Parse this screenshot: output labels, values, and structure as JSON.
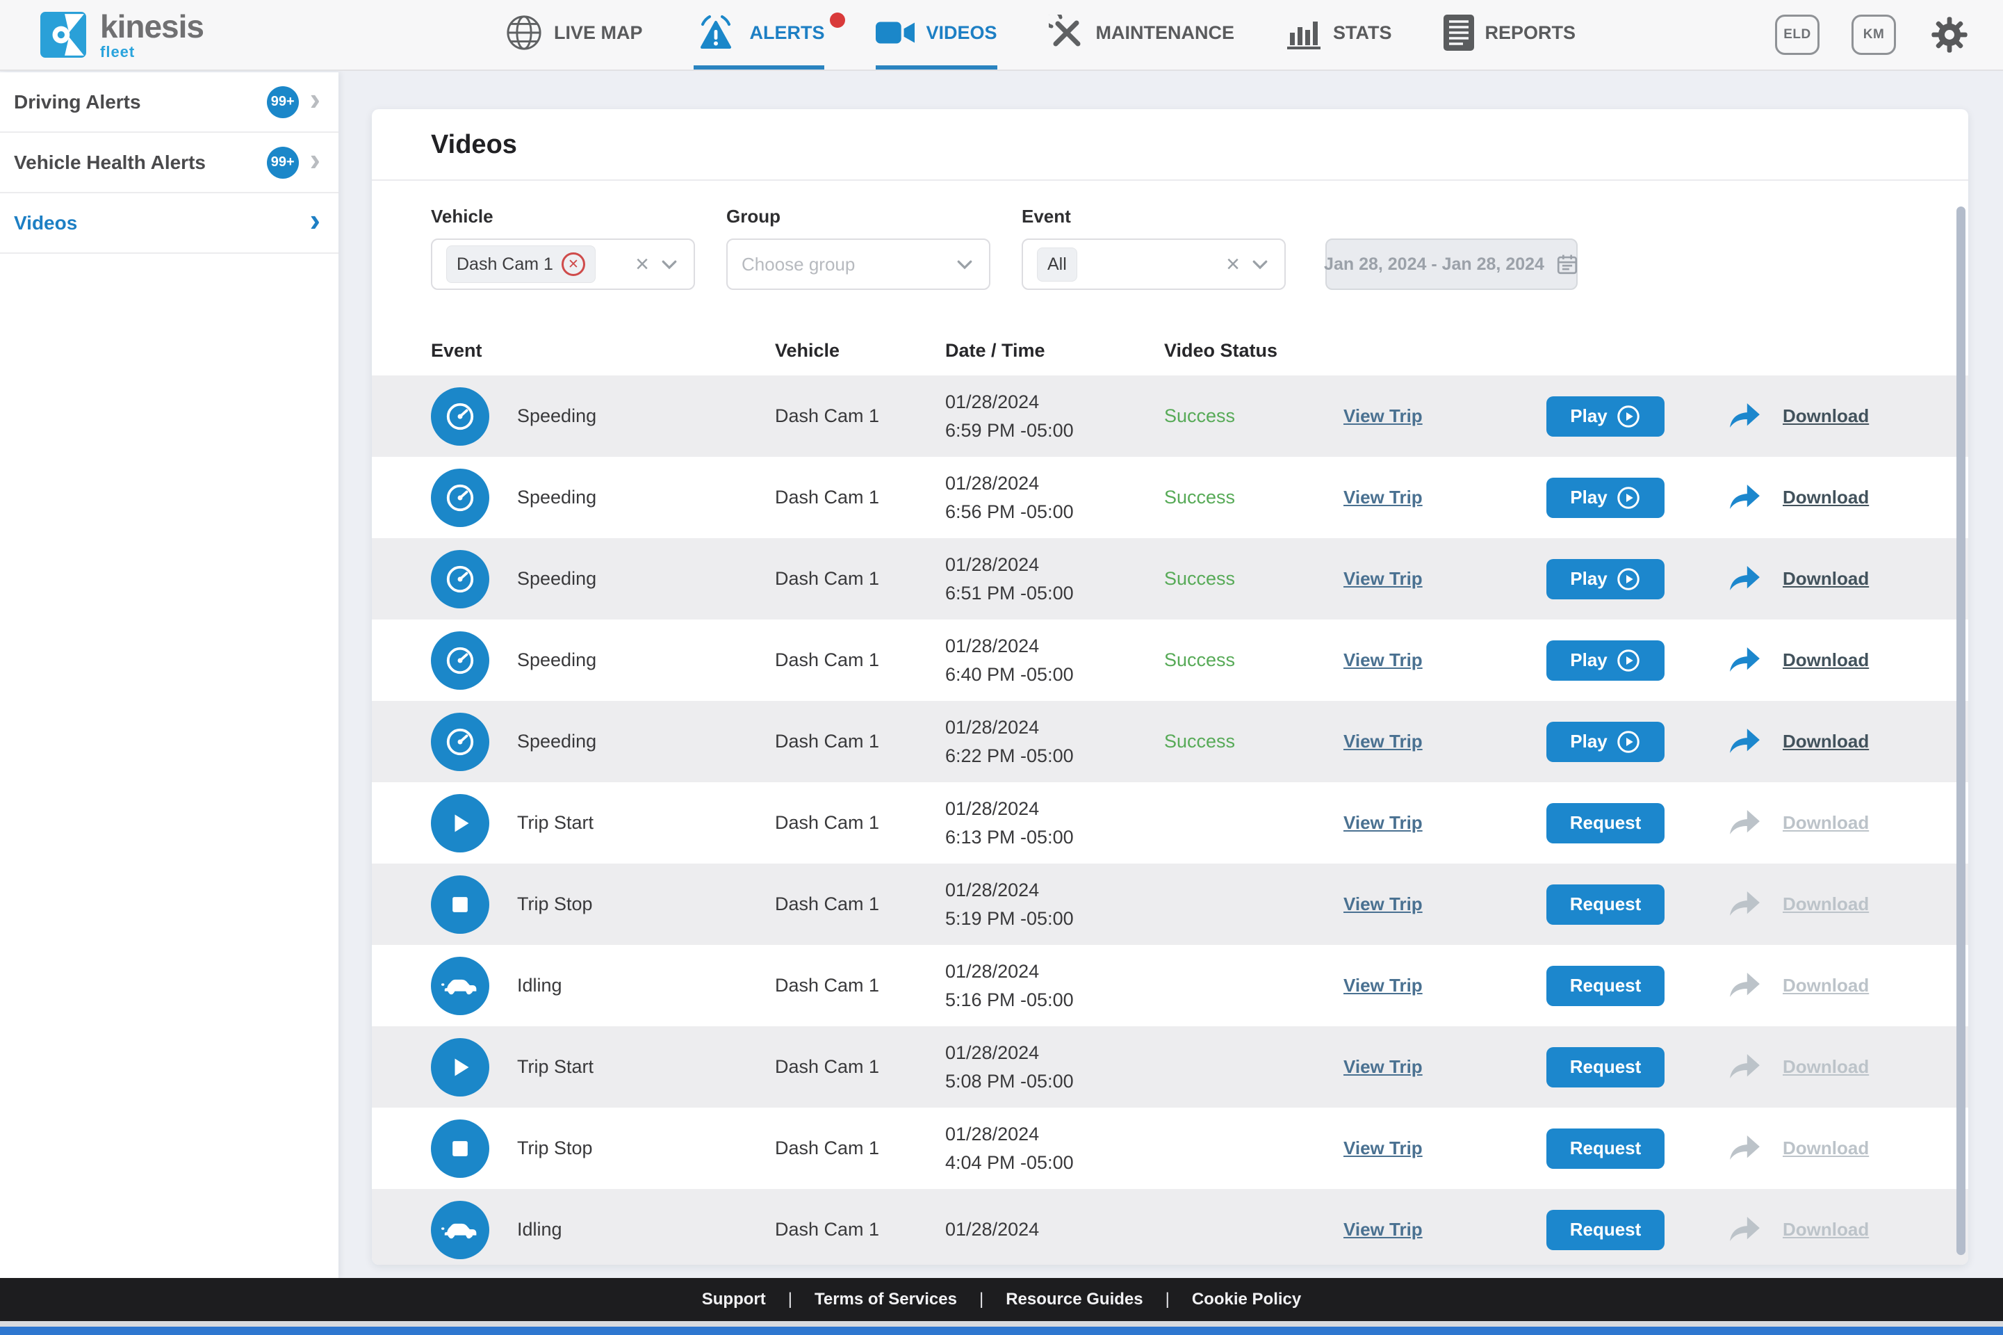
{
  "colors": {
    "accent": "#1b87c9",
    "active_tab": "#1d7fc4",
    "success_green": "#57aa57",
    "alert_dot_red": "#d93a3a",
    "footer_bg": "#1d1d1f"
  },
  "brand": {
    "name": "kinesis",
    "tagline": "fleet"
  },
  "nav": {
    "items": [
      {
        "label": "LIVE MAP",
        "icon": "globe",
        "active": false,
        "has_badge": false
      },
      {
        "label": "ALERTS",
        "icon": "alert",
        "active": true,
        "has_badge": true
      },
      {
        "label": "VIDEOS",
        "icon": "camera",
        "active": true,
        "has_badge": false
      },
      {
        "label": "MAINTENANCE",
        "icon": "tools",
        "active": false,
        "has_badge": false
      },
      {
        "label": "STATS",
        "icon": "stats",
        "active": false,
        "has_badge": false
      },
      {
        "label": "REPORTS",
        "icon": "reports",
        "active": false,
        "has_badge": false
      }
    ],
    "toggles": [
      {
        "label": "ELD"
      },
      {
        "label": "KM"
      }
    ]
  },
  "sidebar": {
    "items": [
      {
        "label": "Driving Alerts",
        "badge": "99+",
        "active": false
      },
      {
        "label": "Vehicle Health Alerts",
        "badge": "99+",
        "active": false
      },
      {
        "label": "Videos",
        "badge": "",
        "active": true
      }
    ]
  },
  "page": {
    "title": "Videos"
  },
  "filters": {
    "vehicle": {
      "label": "Vehicle",
      "selected_chip": "Dash Cam 1"
    },
    "group": {
      "label": "Group",
      "placeholder": "Choose group"
    },
    "event": {
      "label": "Event",
      "selected_chip": "All"
    },
    "date_range": {
      "value": "Jan 28, 2024 - Jan 28, 2024"
    }
  },
  "table": {
    "headers": [
      "Event",
      "Vehicle",
      "Date / Time",
      "Video Status"
    ],
    "rows": [
      {
        "event": "Speeding",
        "icon": "speedometer",
        "vehicle": "Dash Cam 1",
        "date": "01/28/2024",
        "time": "6:59 PM -05:00",
        "status": "Success",
        "view_trip": "View Trip",
        "action": "Play",
        "download": "Download",
        "media_ready": true
      },
      {
        "event": "Speeding",
        "icon": "speedometer",
        "vehicle": "Dash Cam 1",
        "date": "01/28/2024",
        "time": "6:56 PM -05:00",
        "status": "Success",
        "view_trip": "View Trip",
        "action": "Play",
        "download": "Download",
        "media_ready": true
      },
      {
        "event": "Speeding",
        "icon": "speedometer",
        "vehicle": "Dash Cam 1",
        "date": "01/28/2024",
        "time": "6:51 PM -05:00",
        "status": "Success",
        "view_trip": "View Trip",
        "action": "Play",
        "download": "Download",
        "media_ready": true
      },
      {
        "event": "Speeding",
        "icon": "speedometer",
        "vehicle": "Dash Cam 1",
        "date": "01/28/2024",
        "time": "6:40 PM -05:00",
        "status": "Success",
        "view_trip": "View Trip",
        "action": "Play",
        "download": "Download",
        "media_ready": true
      },
      {
        "event": "Speeding",
        "icon": "speedometer",
        "vehicle": "Dash Cam 1",
        "date": "01/28/2024",
        "time": "6:22 PM -05:00",
        "status": "Success",
        "view_trip": "View Trip",
        "action": "Play",
        "download": "Download",
        "media_ready": true
      },
      {
        "event": "Trip Start",
        "icon": "play",
        "vehicle": "Dash Cam 1",
        "date": "01/28/2024",
        "time": "6:13 PM -05:00",
        "status": "",
        "view_trip": "View Trip",
        "action": "Request",
        "download": "Download",
        "media_ready": false
      },
      {
        "event": "Trip Stop",
        "icon": "stop",
        "vehicle": "Dash Cam 1",
        "date": "01/28/2024",
        "time": "5:19 PM -05:00",
        "status": "",
        "view_trip": "View Trip",
        "action": "Request",
        "download": "Download",
        "media_ready": false
      },
      {
        "event": "Idling",
        "icon": "car",
        "vehicle": "Dash Cam 1",
        "date": "01/28/2024",
        "time": "5:16 PM -05:00",
        "status": "",
        "view_trip": "View Trip",
        "action": "Request",
        "download": "Download",
        "media_ready": false
      },
      {
        "event": "Trip Start",
        "icon": "play",
        "vehicle": "Dash Cam 1",
        "date": "01/28/2024",
        "time": "5:08 PM -05:00",
        "status": "",
        "view_trip": "View Trip",
        "action": "Request",
        "download": "Download",
        "media_ready": false
      },
      {
        "event": "Trip Stop",
        "icon": "stop",
        "vehicle": "Dash Cam 1",
        "date": "01/28/2024",
        "time": "4:04 PM -05:00",
        "status": "",
        "view_trip": "View Trip",
        "action": "Request",
        "download": "Download",
        "media_ready": false
      },
      {
        "event": "Idling",
        "icon": "car",
        "vehicle": "Dash Cam 1",
        "date": "01/28/2024",
        "time": "",
        "status": "",
        "view_trip": "View Trip",
        "action": "Request",
        "download": "Download",
        "media_ready": false
      }
    ]
  },
  "footer": {
    "links": [
      "Support",
      "Terms of Services",
      "Resource Guides",
      "Cookie Policy"
    ]
  }
}
